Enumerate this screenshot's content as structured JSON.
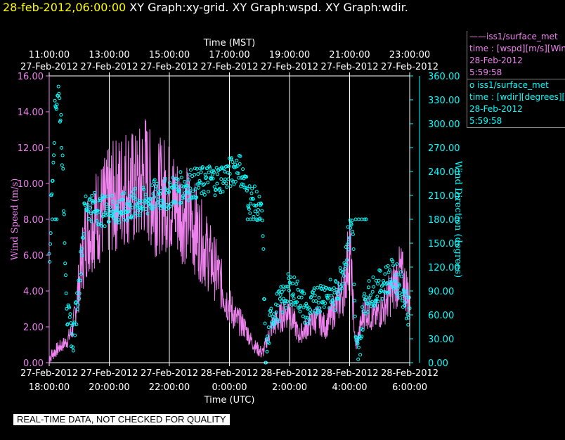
{
  "header": {
    "date": "28-feb-2012,06:00:00",
    "titles": "XY Graph:xy-grid.  XY Graph:wspd.  XY Graph:wdir."
  },
  "legend": {
    "wspd": {
      "name": "iss1/surface_met",
      "line2": "time : [wspd][m/s][Wind",
      "line3": "28-Feb-2012",
      "line4": "5:59:58"
    },
    "wdir": {
      "name": "iss1/surface_met",
      "line2": "time : [wdir][degrees][V",
      "line3": "28-Feb-2012",
      "line4": "5:59:58"
    }
  },
  "footer": "REAL-TIME DATA, NOT CHECKED FOR QUALITY",
  "colors": {
    "wspd": "#ee82ee",
    "wdir": "#00ffff",
    "grid": "#ffffff",
    "background": "#000000"
  },
  "chart_data": {
    "type": "line",
    "top_axis": {
      "label": "Time (MST)",
      "times": [
        "11:00:00",
        "13:00:00",
        "15:00:00",
        "17:00:00",
        "19:00:00",
        "21:00:00",
        "23:00:00"
      ],
      "dates": [
        "27-Feb-2012",
        "27-Feb-2012",
        "27-Feb-2012",
        "27-Feb-2012",
        "27-Feb-2012",
        "27-Feb-2012",
        "27-Feb-2012"
      ]
    },
    "bottom_axis": {
      "label": "Time (UTC)",
      "dates": [
        "27-Feb-2012",
        "27-Feb-2012",
        "27-Feb-2012",
        "28-Feb-2012",
        "28-Feb-2012",
        "28-Feb-2012",
        "28-Feb-2012"
      ],
      "times": [
        "18:00:00",
        "20:00:00",
        "22:00:00",
        "0:00:00",
        "2:00:00",
        "4:00:00",
        "6:00:00"
      ]
    },
    "x_range_hours_utc": [
      18,
      30
    ],
    "left_axis": {
      "label": "Wind Speed (m/s)",
      "range": [
        0,
        16
      ],
      "ticks": [
        "0.00",
        "2.00",
        "4.00",
        "6.00",
        "8.00",
        "10.00",
        "12.00",
        "14.00",
        "16.00"
      ]
    },
    "right_axis": {
      "label": "Wind Direction (degrees)",
      "range": [
        0,
        360
      ],
      "ticks": [
        "0.00",
        "30.00",
        "60.00",
        "90.00",
        "120.00",
        "150.00",
        "180.00",
        "210.00",
        "240.00",
        "270.00",
        "300.00",
        "330.00",
        "360.00"
      ]
    },
    "grid": "vertical",
    "series": [
      {
        "name": "iss1/surface_met",
        "variable": "wspd",
        "axis": "left",
        "style": "line",
        "x": [
          18.0,
          18.3,
          18.6,
          18.8,
          19.0,
          19.2,
          19.5,
          19.8,
          20.0,
          20.3,
          20.6,
          20.9,
          21.2,
          21.5,
          21.8,
          22.1,
          22.4,
          22.7,
          23.0,
          23.3,
          23.6,
          23.9,
          24.2,
          24.5,
          24.8,
          25.1,
          25.4,
          25.7,
          26.0,
          26.3,
          26.6,
          26.9,
          27.2,
          27.5,
          27.8,
          28.0,
          28.2,
          28.5,
          28.8,
          29.1,
          29.4,
          29.7,
          30.0
        ],
        "y": [
          0.3,
          0.8,
          1.2,
          2.0,
          4.5,
          7.0,
          8.0,
          8.5,
          9.0,
          9.5,
          10.0,
          9.5,
          10.5,
          9.0,
          9.5,
          9.0,
          8.5,
          8.0,
          7.0,
          6.0,
          5.0,
          3.5,
          2.5,
          2.0,
          1.0,
          0.5,
          2.0,
          2.5,
          3.0,
          1.5,
          2.0,
          2.5,
          2.0,
          3.0,
          4.0,
          6.5,
          0.8,
          3.0,
          2.5,
          3.0,
          4.0,
          5.0,
          3.5
        ]
      },
      {
        "name": "iss1/surface_met",
        "variable": "wdir",
        "axis": "right",
        "style": "markers",
        "x": [
          18.0,
          18.1,
          18.2,
          18.3,
          18.4,
          18.6,
          18.8,
          19.0,
          19.2,
          19.5,
          19.8,
          20.0,
          20.3,
          20.6,
          20.9,
          21.2,
          21.5,
          21.8,
          22.1,
          22.4,
          22.7,
          23.0,
          23.3,
          23.6,
          23.9,
          24.1,
          24.3,
          24.5,
          24.7,
          24.9,
          25.1,
          25.2,
          25.4,
          25.6,
          25.8,
          26.0,
          26.3,
          26.6,
          26.9,
          27.2,
          27.5,
          27.8,
          28.0,
          28.1,
          28.2,
          28.3,
          28.5,
          28.8,
          29.1,
          29.4,
          29.7,
          30.0
        ],
        "y": [
          120,
          230,
          320,
          345,
          300,
          60,
          30,
          100,
          200,
          195,
          190,
          195,
          190,
          195,
          200,
          200,
          210,
          210,
          215,
          220,
          225,
          225,
          230,
          230,
          235,
          240,
          250,
          225,
          205,
          200,
          180,
          5,
          60,
          70,
          80,
          95,
          85,
          60,
          80,
          90,
          80,
          120,
          165,
          180,
          20,
          10,
          80,
          90,
          100,
          110,
          100,
          60
        ]
      },
      {
        "name": "iss1/surface_met",
        "variable": "wdir_flat",
        "axis": "right",
        "style": "markers",
        "x": [
          18.1,
          18.2,
          18.25,
          24.6,
          24.7,
          24.8,
          24.9,
          25.0,
          28.2,
          28.3,
          28.4,
          28.5,
          28.55
        ],
        "y": [
          180,
          180,
          180,
          180,
          180,
          180,
          180,
          180,
          180,
          180,
          180,
          180,
          180
        ]
      }
    ]
  }
}
